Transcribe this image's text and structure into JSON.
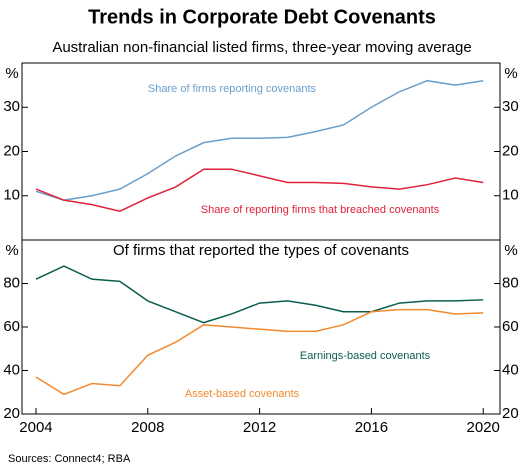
{
  "page": {
    "title": "Trends in Corporate Debt Covenants",
    "subtitle": "Australian non-financial listed firms, three-year moving average",
    "source": "Sources: Connect4; RBA"
  },
  "chart_data": [
    {
      "type": "line",
      "ylabel": "%",
      "x": [
        2004,
        2005,
        2006,
        2007,
        2008,
        2009,
        2010,
        2011,
        2012,
        2013,
        2014,
        2015,
        2016,
        2017,
        2018,
        2019,
        2020
      ],
      "xlim": [
        2003.5,
        2020.6
      ],
      "ylim": [
        0,
        40
      ],
      "yticks": [
        10,
        20,
        30
      ],
      "series": [
        {
          "name": "Share of firms reporting covenants",
          "color": "#6a9fcc",
          "values": [
            11,
            9,
            10,
            11.5,
            15,
            19,
            22,
            23,
            23,
            23.2,
            24.5,
            26,
            30,
            33.5,
            36,
            35,
            36
          ]
        },
        {
          "name": "Share of reporting firms that breached covenants",
          "color": "#e0223b",
          "values": [
            11.5,
            9,
            8,
            6.5,
            9.5,
            12,
            16,
            16,
            14.5,
            13,
            13,
            12.8,
            12,
            11.5,
            12.5,
            14,
            13
          ]
        }
      ]
    },
    {
      "type": "line",
      "title": "Of firms that reported the types of covenants",
      "ylabel": "%",
      "x": [
        2004,
        2005,
        2006,
        2007,
        2008,
        2009,
        2010,
        2011,
        2012,
        2013,
        2014,
        2015,
        2016,
        2017,
        2018,
        2019,
        2020
      ],
      "xlim": [
        2003.5,
        2020.6
      ],
      "xticks": [
        2004,
        2008,
        2012,
        2016,
        2020
      ],
      "ylim": [
        20,
        100
      ],
      "yticks": [
        20,
        40,
        60,
        80
      ],
      "series": [
        {
          "name": "Earnings-based covenants",
          "color": "#0b5e4e",
          "values": [
            82,
            88,
            82,
            81,
            72,
            67,
            62,
            66,
            71,
            72,
            70,
            67,
            67,
            71,
            72,
            72,
            72.5
          ]
        },
        {
          "name": "Asset-based covenants",
          "color": "#f28a30",
          "values": [
            37,
            29,
            34,
            33,
            47,
            53,
            61,
            60,
            59,
            58,
            58,
            61,
            67,
            68,
            68,
            66,
            66.5
          ]
        }
      ]
    }
  ]
}
